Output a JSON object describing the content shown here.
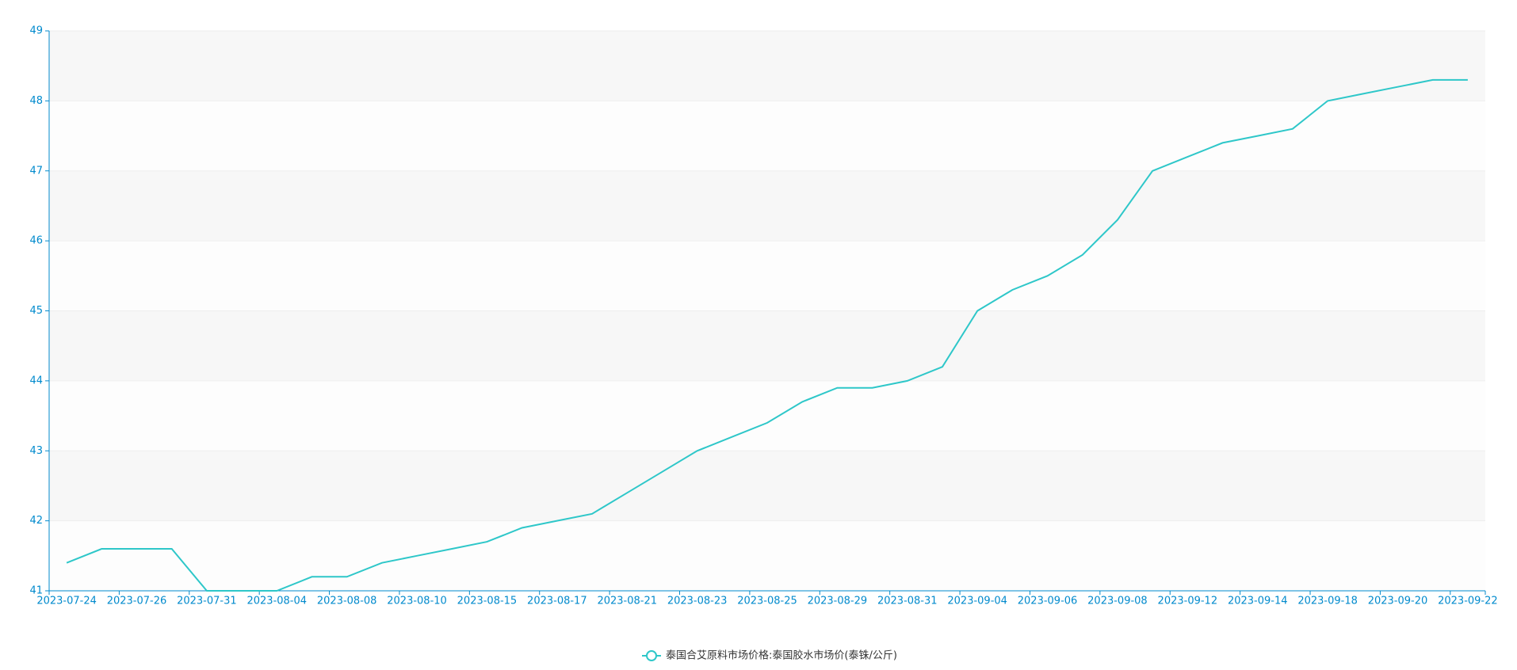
{
  "chart_data": {
    "type": "line",
    "categories": [
      "2023-07-24",
      null,
      "2023-07-26",
      null,
      "2023-07-31",
      null,
      "2023-08-04",
      null,
      "2023-08-08",
      null,
      "2023-08-10",
      null,
      "2023-08-15",
      null,
      "2023-08-17",
      null,
      "2023-08-21",
      null,
      "2023-08-23",
      null,
      "2023-08-25",
      null,
      "2023-08-29",
      null,
      "2023-08-31",
      null,
      "2023-09-04",
      null,
      "2023-09-06",
      null,
      "2023-09-08",
      null,
      "2023-09-12",
      null,
      "2023-09-14",
      null,
      "2023-09-18",
      null,
      "2023-09-20",
      null,
      "2023-09-22"
    ],
    "series": [
      {
        "name": "泰国合艾原料市场价格:泰国胶水市场价(泰铢/公斤)",
        "color": "#2ec7c9",
        "values": [
          41.4,
          41.6,
          41.6,
          41.6,
          41.0,
          41.0,
          41.0,
          41.2,
          41.2,
          41.4,
          41.5,
          41.6,
          41.7,
          41.9,
          42.0,
          42.1,
          42.4,
          42.7,
          43.0,
          43.2,
          43.4,
          43.7,
          43.9,
          43.9,
          44.0,
          44.2,
          45.0,
          45.3,
          45.5,
          45.8,
          46.3,
          47.0,
          47.2,
          47.4,
          47.5,
          47.6,
          48.0,
          48.1,
          48.2,
          48.3,
          48.3
        ]
      }
    ],
    "ylim": [
      41,
      49
    ],
    "yticks": [
      41,
      42,
      43,
      44,
      45,
      46,
      47,
      48,
      49
    ],
    "axis_color": "#008acd",
    "split_area": true,
    "legend": "bottom"
  }
}
